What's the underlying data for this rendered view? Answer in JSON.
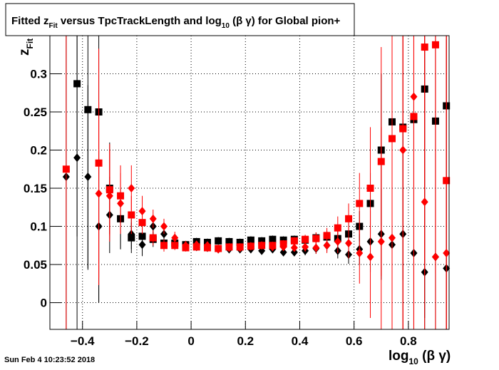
{
  "chart_data": {
    "type": "scatter",
    "title": [
      "Fitted  z",
      "Fit",
      "  versus TpcTrackLength and log",
      "10",
      " (β γ) for Global pion+"
    ],
    "x_label": [
      "log",
      "10",
      " (β γ)"
    ],
    "y_label": [
      "z",
      "Fit"
    ],
    "timestamp": "Sun Feb  4 10:23:52 2018",
    "xlim": [
      -0.52,
      0.95
    ],
    "ylim": [
      -0.035,
      0.35
    ],
    "xticks": [
      {
        "value": -0.4,
        "label": "−0.4"
      },
      {
        "value": -0.2,
        "label": "−0.2"
      },
      0,
      0.2,
      0.4,
      0.6,
      0.8
    ],
    "yticks": [
      0,
      0.05,
      0.1,
      0.15,
      0.2,
      0.25,
      0.3
    ],
    "grid": true,
    "x": [
      -0.46,
      -0.42,
      -0.38,
      -0.34,
      -0.3,
      -0.26,
      -0.22,
      -0.18,
      -0.14,
      -0.1,
      -0.06,
      -0.02,
      0.02,
      0.06,
      0.1,
      0.14,
      0.18,
      0.22,
      0.26,
      0.3,
      0.34,
      0.38,
      0.42,
      0.46,
      0.5,
      0.54,
      0.58,
      0.62,
      0.66,
      0.7,
      0.74,
      0.78,
      0.82,
      0.86,
      0.9,
      0.94
    ],
    "series": [
      {
        "color": "#000000",
        "marker": "square",
        "values": [
          null,
          0.287,
          0.253,
          0.25,
          0.15,
          0.11,
          0.085,
          0.087,
          0.083,
          0.078,
          0.078,
          0.076,
          0.08,
          0.079,
          0.081,
          0.08,
          0.079,
          0.082,
          0.081,
          0.083,
          0.082,
          0.083,
          0.082,
          0.085,
          0.086,
          0.084,
          0.09,
          0.1,
          0.13,
          0.2,
          0.237,
          0.23,
          0.24,
          0.28,
          0.238,
          0.258
        ],
        "errors": [
          null,
          0.2,
          0.21,
          0.25,
          0.06,
          0.04,
          0.02,
          0.015,
          0.01,
          0.008,
          0.006,
          0.005,
          0.005,
          0.005,
          0.005,
          0.005,
          0.005,
          0.005,
          0.005,
          0.005,
          0.005,
          0.005,
          0.006,
          0.007,
          0.008,
          0.01,
          0.015,
          0.02,
          0.04,
          0.1,
          0.16,
          0.2,
          0.3,
          0.3,
          0.3,
          0.3
        ]
      },
      {
        "color": "#000000",
        "marker": "diamond",
        "values": [
          0.165,
          0.19,
          0.165,
          0.1,
          0.115,
          0.11,
          0.09,
          0.076,
          0.1,
          0.09,
          0.078,
          0.075,
          0.073,
          0.072,
          0.07,
          0.07,
          0.07,
          0.07,
          0.068,
          0.07,
          0.066,
          0.066,
          0.068,
          0.071,
          0.075,
          0.068,
          0.063,
          0.07,
          0.08,
          0.09,
          0.076,
          0.09,
          0.065,
          0.04,
          0.06,
          0.045
        ],
        "errors": [
          0.3,
          0.3,
          0.12,
          0.1,
          0.05,
          0.04,
          0.02,
          0.015,
          0.012,
          0.01,
          0.007,
          0.005,
          0.005,
          0.005,
          0.005,
          0.005,
          0.005,
          0.005,
          0.005,
          0.005,
          0.005,
          0.005,
          0.006,
          0.007,
          0.008,
          0.01,
          0.012,
          0.02,
          0.04,
          0.06,
          0.1,
          0.15,
          0.2,
          0.3,
          0.3,
          0.3
        ]
      },
      {
        "color": "#ff0000",
        "marker": "square",
        "values": [
          0.175,
          null,
          null,
          0.183,
          0.148,
          0.14,
          0.115,
          0.105,
          0.085,
          0.075,
          0.075,
          0.072,
          0.073,
          0.072,
          0.071,
          0.073,
          0.073,
          0.074,
          0.075,
          0.075,
          0.077,
          0.081,
          0.083,
          0.084,
          0.088,
          0.098,
          0.11,
          0.13,
          0.15,
          0.185,
          0.215,
          0.228,
          0.244,
          0.335,
          0.338,
          0.16
        ],
        "errors": [
          0.3,
          null,
          null,
          0.15,
          0.06,
          0.04,
          0.025,
          0.015,
          0.01,
          0.008,
          0.006,
          0.005,
          0.005,
          0.005,
          0.005,
          0.005,
          0.005,
          0.005,
          0.005,
          0.005,
          0.005,
          0.005,
          0.006,
          0.008,
          0.01,
          0.015,
          0.02,
          0.04,
          0.08,
          0.15,
          0.25,
          0.3,
          0.3,
          0.3,
          0.3,
          0.3
        ]
      },
      {
        "color": "#ff0000",
        "marker": "diamond",
        "values": [
          null,
          null,
          null,
          0.143,
          0.14,
          0.13,
          0.15,
          0.12,
          0.11,
          0.1,
          0.085,
          0.075,
          0.076,
          0.075,
          0.07,
          0.072,
          0.072,
          0.074,
          0.075,
          0.073,
          0.073,
          0.072,
          0.073,
          0.072,
          0.075,
          0.08,
          0.078,
          0.065,
          0.06,
          0.08,
          0.085,
          0.2,
          0.27,
          0.132,
          0.06,
          0.065
        ],
        "errors": [
          null,
          null,
          null,
          0.12,
          0.06,
          0.04,
          0.03,
          0.02,
          0.012,
          0.01,
          0.008,
          0.006,
          0.005,
          0.005,
          0.005,
          0.005,
          0.005,
          0.005,
          0.005,
          0.005,
          0.005,
          0.005,
          0.006,
          0.008,
          0.01,
          0.015,
          0.02,
          0.04,
          0.08,
          0.15,
          0.25,
          0.3,
          0.3,
          0.3,
          0.3,
          0.3
        ]
      }
    ]
  }
}
